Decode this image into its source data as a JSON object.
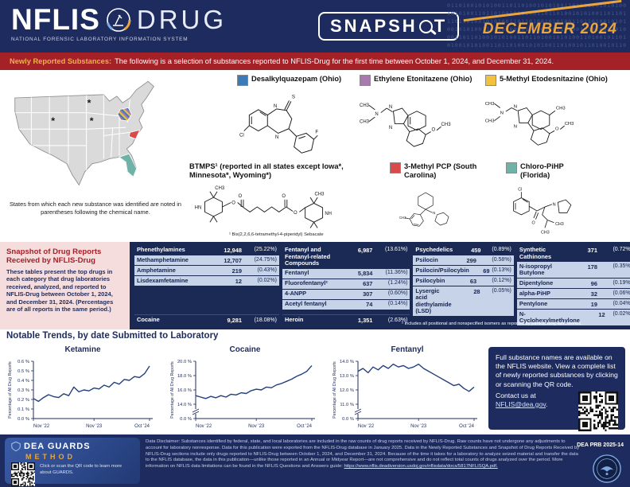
{
  "header": {
    "logo_title": "NFLIS",
    "logo_drug": "DRUG",
    "logo_subtitle": "NATIONAL FORENSIC LABORATORY INFORMATION SYSTEM",
    "snapshot_label": "SNAPSHOT",
    "issue_date": "DECEMBER 2024",
    "binary_pattern": "0110100101010011011010010101001101101001010100110110100101010011010010110100101101",
    "colors": {
      "navy": "#1d2b5e",
      "gold": "#eaa63c",
      "red": "#a42127"
    }
  },
  "banner": {
    "title": "Newly Reported Substances:",
    "text": "The following is a selection of substances reported to NFLIS-Drug for the first time between October 1, 2024, and December 31, 2024."
  },
  "map_section": {
    "caption": "States from which each new substance was identified are noted in parentheses following the chemical name.",
    "asterisk_states": [
      "Wyoming",
      "Minnesota",
      "Iowa"
    ]
  },
  "substances": [
    {
      "name": "Desalkylquazepam (Ohio)",
      "color": "#3d7ab8",
      "atoms": [
        "Cl",
        "N",
        "S",
        "N",
        "F"
      ]
    },
    {
      "name": "Ethylene Etonitazene (Ohio)",
      "color": "#a87ab0",
      "atoms": [
        "CH3",
        "CH3",
        "N",
        "N",
        "N",
        "O",
        "CH3"
      ]
    },
    {
      "name": "5-Methyl Etodesnitazine (Ohio)",
      "color": "#f2c23e",
      "atoms": [
        "CH3",
        "CH3",
        "N",
        "N",
        "N",
        "O",
        "CH3",
        "CH3"
      ]
    },
    {
      "name": "BTMPS¹ (reported in all states except Iowa*, Minnesota*, Wyoming*)",
      "color": null,
      "footnote": "¹ Bis(2,2,6,6-tetramethyl-4-piperidyl) Sebacate",
      "atoms": [
        "HN",
        "CH3",
        "O",
        "O",
        "O",
        "O",
        "CH3",
        "NH"
      ]
    },
    {
      "name": "3-Methyl PCP (South Carolina)",
      "color": "#d94a4a",
      "atoms": [
        "N",
        "CH3"
      ]
    },
    {
      "name": "Chloro-PiHP (Florida)",
      "color": "#6fb3a8",
      "atoms": [
        "Cl",
        "O",
        "N",
        "CH3",
        "CH3"
      ]
    }
  ],
  "snapshot": {
    "sidebar_title": "Snapshot of Drug Reports Received by NFLIS-Drug",
    "sidebar_text": "These tables present the top drugs in each category that drug laboratories received, analyzed, and reported to NFLIS-Drug between October 1, 2024, and December 31, 2024. (Percentages are of all reports in the same period.)",
    "groups": [
      {
        "header": {
          "name": "Phenethylamines",
          "count": "12,948",
          "pct": "(25.22%)"
        },
        "rows": [
          {
            "name": "Methamphetamine",
            "count": "12,707",
            "pct": "(24.75%)"
          },
          {
            "name": "Amphetamine",
            "count": "219",
            "pct": "(0.43%)"
          },
          {
            "name": "Lisdexamfetamine",
            "count": "12",
            "pct": "(0.02%)"
          }
        ],
        "footer": {
          "name": "Cocaine",
          "count": "9,281",
          "pct": "(18.08%)"
        }
      },
      {
        "header": {
          "name": "Fentanyl and Fentanyl-related Compounds",
          "count": "6,987",
          "pct": "(13.61%)"
        },
        "rows": [
          {
            "name": "Fentanyl",
            "count": "5,834",
            "pct": "(11.36%)"
          },
          {
            "name": "Fluorofentanyl²",
            "count": "637",
            "pct": "(1.24%)"
          },
          {
            "name": "4-ANPP",
            "count": "307",
            "pct": "(0.60%)"
          },
          {
            "name": "Acetyl fentanyl",
            "count": "74",
            "pct": "(0.14%)"
          }
        ],
        "footer": {
          "name": "Heroin",
          "count": "1,351",
          "pct": "(2.63%)"
        }
      },
      {
        "header": {
          "name": "Psychedelics",
          "count": "459",
          "pct": "(0.89%)"
        },
        "rows": [
          {
            "name": "Psilocin",
            "count": "299",
            "pct": "(0.58%)"
          },
          {
            "name": "Psilocin/Psilocybin",
            "count": "69",
            "pct": "(0.13%)"
          },
          {
            "name": "Psilocybin",
            "count": "63",
            "pct": "(0.12%)"
          },
          {
            "name": "Lysergic acid diethylamide (LSD)",
            "count": "28",
            "pct": "(0.05%)"
          }
        ]
      },
      {
        "header": {
          "name": "Synthetic Cathinones",
          "count": "371",
          "pct": "(0.72%)"
        },
        "rows": [
          {
            "name": "N-isopropyl Butylone",
            "count": "178",
            "pct": "(0.35%)"
          },
          {
            "name": "Dipentylone",
            "count": "96",
            "pct": "(0.19%)"
          },
          {
            "name": "alpha-PiHP",
            "count": "32",
            "pct": "(0.06%)"
          },
          {
            "name": "Pentylone",
            "count": "19",
            "pct": "(0.04%)"
          },
          {
            "name": "N-Cyclohexylmethylone",
            "count": "12",
            "pct": "(0.02%)"
          }
        ]
      }
    ],
    "footnote": "² Includes all positional and nonspecified isomers as reported by participating laboratories."
  },
  "trends": {
    "title": "Notable Trends, by date Submitted to Laboratory"
  },
  "chart_data": [
    {
      "type": "line",
      "title": "Ketamine",
      "ylabel": "Percentage of All Drug Reports",
      "x_ticks": [
        "Nov '22",
        "Nov '23",
        "Oct '24"
      ],
      "y_ticks": [
        "0.0 %",
        "0.1 %",
        "0.2 %",
        "0.3 %",
        "0.4 %",
        "0.5 %",
        "0.6 %"
      ],
      "ylim": [
        0,
        0.6
      ],
      "axis_break": false,
      "grid": false,
      "legend": "none",
      "values": [
        0.21,
        0.18,
        0.22,
        0.25,
        0.23,
        0.22,
        0.26,
        0.24,
        0.33,
        0.28,
        0.3,
        0.29,
        0.32,
        0.31,
        0.35,
        0.33,
        0.38,
        0.36,
        0.41,
        0.4,
        0.44,
        0.43,
        0.47,
        0.55
      ]
    },
    {
      "type": "line",
      "title": "Cocaine",
      "ylabel": "Percentage of All Drug Reports",
      "x_ticks": [
        "Nov '22",
        "Nov '23",
        "Oct '24"
      ],
      "y_ticks": [
        "0.0 %",
        "14.0 %",
        "16.0 %",
        "18.0 %",
        "20.0 %"
      ],
      "ylim": [
        14,
        20
      ],
      "axis_break": true,
      "grid": false,
      "legend": "none",
      "values": [
        15.2,
        15.0,
        14.8,
        15.1,
        14.9,
        15.2,
        15.0,
        15.4,
        15.3,
        15.6,
        15.5,
        15.9,
        16.1,
        16.0,
        16.4,
        16.3,
        16.7,
        16.9,
        17.2,
        17.5,
        17.9,
        18.2,
        18.6,
        19.4
      ]
    },
    {
      "type": "line",
      "title": "Fentanyl",
      "ylabel": "Percentage of All Drug Reports",
      "x_ticks": [
        "Nov '22",
        "Nov '23",
        "Oct '24"
      ],
      "y_ticks": [
        "0.0 %",
        "11.0 %",
        "12.0 %",
        "13.0 %",
        "14.0 %"
      ],
      "ylim": [
        11,
        14
      ],
      "axis_break": true,
      "grid": false,
      "legend": "none",
      "values": [
        13.3,
        13.5,
        13.2,
        13.6,
        13.4,
        13.7,
        13.5,
        13.8,
        13.6,
        13.7,
        13.5,
        13.6,
        13.8,
        13.5,
        13.3,
        13.1,
        12.9,
        12.7,
        12.5,
        12.3,
        12.4,
        12.1,
        11.9,
        12.2
      ]
    }
  ],
  "info_box": {
    "text": "Full substance names are available on the NFLIS website. View a complete list of newly reported substances by clicking or scanning the QR code.",
    "contact_prefix": "Contact us at ",
    "contact_link": "NFLIS@dea.gov",
    "contact_suffix": "."
  },
  "footer": {
    "guards_title": "DEA GUARDS",
    "guards_subtitle": "METHOD",
    "guards_caption": "Click or scan the QR code to learn more about GUARDS.",
    "disclaimer_text": "Data Disclaimer: Substances identified by federal, state, and local laboratories are included in the raw counts of drug reports received by NFLIS-Drug. Raw counts have not undergone any adjustments to account for laboratory nonresponse. Data for this publication were exported from the NFLIS-Drug database in January 2025. Data in the Newly Reported Substances and Snapshot of Drug Reports Received by NFLIS-Drug sections include only drugs reported to NFLIS-Drug between October 1, 2024, and December 31, 2024. Because of the time it takes for a laboratory to analyze seized material and transfer the data to the NFLIS database, the data in this publication—unlike those reported in an Annual or Midyear Report—are not comprehensive and do not reflect total counts of drugs analyzed over the period. More information on NFLIS data limitations can be found in the NFLIS Questions and Answers guide: ",
    "disclaimer_link": "https://www.nflis.deadiversion.usdoj.gov/nflisdata/docs/5817NFLISQA.pdf.",
    "prb": "DEA PRB 2025-14"
  }
}
